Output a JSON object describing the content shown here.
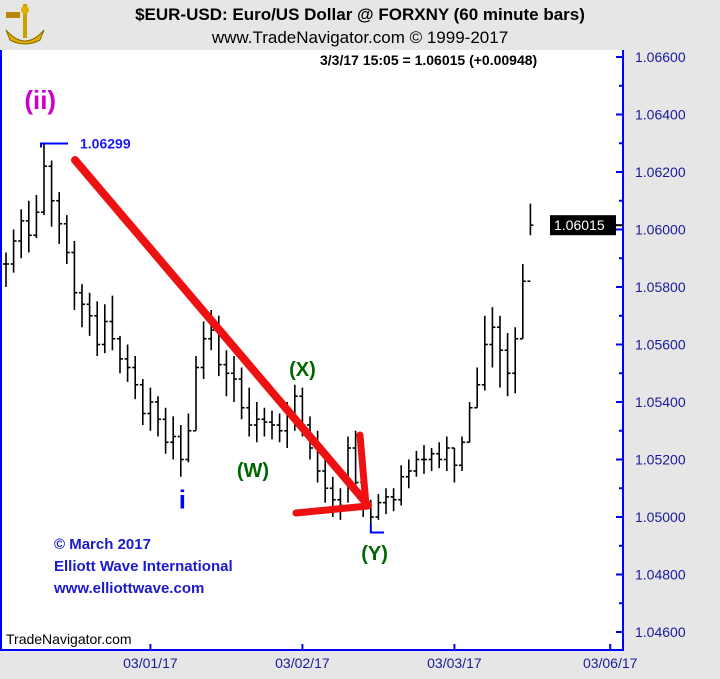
{
  "header": {
    "title": "$EUR-USD:  Euro/US Dollar @ FORXNY  (60 minute bars)",
    "subtitle": "www.TradeNavigator.com © 1999-2017",
    "readout": "3/3/17 15:05 = 1.06015 (+0.00948)",
    "logo": "sextant-logo"
  },
  "footer": {
    "brand": "TradeNavigator.com",
    "copyright": [
      "© March 2017",
      "Elliott Wave International",
      "www.elliottwave.com"
    ]
  },
  "colors": {
    "bars": "#000000",
    "axis": "#0000ff",
    "arrow": "#ee1111",
    "wave_ii": "#cc00cc",
    "wave_i": "#0000ff",
    "wave_wxy": "#006600"
  },
  "chart_data": {
    "type": "ohlc",
    "title": "$EUR-USD:  Euro/US Dollar @ FORXNY  (60 minute bars)",
    "ylim": [
      1.0452,
      1.0673
    ],
    "yticks": [
      "1.06600",
      "1.06400",
      "1.06200",
      "1.06000",
      "1.05800",
      "1.05600",
      "1.05400",
      "1.05200",
      "1.05000",
      "1.04800",
      "1.04600"
    ],
    "xticks": [
      {
        "bar": 19,
        "label": "03/01/17"
      },
      {
        "bar": 39,
        "label": "03/02/17"
      },
      {
        "bar": 59,
        "label": "03/03/17"
      },
      {
        "bar": 79.5,
        "label": "03/06/17"
      }
    ],
    "last_price": "1.06015",
    "high_label": "1.06299",
    "bars_hlc": [
      [
        1.0592,
        1.058,
        1.0588
      ],
      [
        1.06,
        1.0585,
        1.0596
      ],
      [
        1.0607,
        1.059,
        1.0603
      ],
      [
        1.061,
        1.0592,
        1.0598
      ],
      [
        1.0612,
        1.0597,
        1.0606
      ],
      [
        1.06299,
        1.0605,
        1.0622
      ],
      [
        1.0624,
        1.0601,
        1.061
      ],
      [
        1.0613,
        1.0595,
        1.0602
      ],
      [
        1.0605,
        1.0588,
        1.0592
      ],
      [
        1.0596,
        1.0572,
        1.0578
      ],
      [
        1.0581,
        1.0566,
        1.0574
      ],
      [
        1.0578,
        1.0563,
        1.057
      ],
      [
        1.0575,
        1.0556,
        1.056
      ],
      [
        1.0574,
        1.0557,
        1.0568
      ],
      [
        1.0577,
        1.0558,
        1.0562
      ],
      [
        1.0563,
        1.055,
        1.0555
      ],
      [
        1.056,
        1.0547,
        1.0552
      ],
      [
        1.0556,
        1.0541,
        1.0546
      ],
      [
        1.0548,
        1.0532,
        1.0536
      ],
      [
        1.0545,
        1.053,
        1.054
      ],
      [
        1.0542,
        1.0528,
        1.0534
      ],
      [
        1.0538,
        1.0522,
        1.0526
      ],
      [
        1.0535,
        1.052,
        1.0528
      ],
      [
        1.0532,
        1.0514,
        1.052
      ],
      [
        1.0536,
        1.0519,
        1.053
      ],
      [
        1.0556,
        1.053,
        1.0552
      ],
      [
        1.0568,
        1.0548,
        1.0562
      ],
      [
        1.0572,
        1.0558,
        1.0565
      ],
      [
        1.057,
        1.0549,
        1.0553
      ],
      [
        1.0558,
        1.0542,
        1.055
      ],
      [
        1.0556,
        1.054,
        1.0548
      ],
      [
        1.0552,
        1.0534,
        1.0538
      ],
      [
        1.0545,
        1.0528,
        1.0532
      ],
      [
        1.054,
        1.0526,
        1.0534
      ],
      [
        1.0538,
        1.0528,
        1.0533
      ],
      [
        1.0537,
        1.0527,
        1.0532
      ],
      [
        1.0536,
        1.0526,
        1.053
      ],
      [
        1.054,
        1.0524,
        1.0536
      ],
      [
        1.0546,
        1.053,
        1.0542
      ],
      [
        1.0545,
        1.0528,
        1.0532
      ],
      [
        1.0535,
        1.052,
        1.0524
      ],
      [
        1.053,
        1.0512,
        1.0516
      ],
      [
        1.052,
        1.0505,
        1.051
      ],
      [
        1.0514,
        1.05,
        1.0506
      ],
      [
        1.051,
        1.0499,
        1.0504
      ],
      [
        1.0528,
        1.0505,
        1.0524
      ],
      [
        1.053,
        1.0508,
        1.0512
      ],
      [
        1.0516,
        1.05,
        1.0504
      ],
      [
        1.0506,
        1.04953,
        1.05
      ],
      [
        1.0508,
        1.0499,
        1.0505
      ],
      [
        1.051,
        1.0501,
        1.0507
      ],
      [
        1.051,
        1.0502,
        1.0506
      ],
      [
        1.0518,
        1.0504,
        1.0514
      ],
      [
        1.052,
        1.051,
        1.0516
      ],
      [
        1.0523,
        1.0514,
        1.052
      ],
      [
        1.0525,
        1.0515,
        1.052
      ],
      [
        1.0524,
        1.0516,
        1.0522
      ],
      [
        1.0526,
        1.0517,
        1.052
      ],
      [
        1.0528,
        1.0516,
        1.0524
      ],
      [
        1.0524,
        1.0512,
        1.0518
      ],
      [
        1.0528,
        1.0516,
        1.0526
      ],
      [
        1.054,
        1.0526,
        1.0538
      ],
      [
        1.0552,
        1.0538,
        1.0546
      ],
      [
        1.057,
        1.0544,
        1.056
      ],
      [
        1.0573,
        1.0552,
        1.0566
      ],
      [
        1.057,
        1.0545,
        1.0558
      ],
      [
        1.0564,
        1.0542,
        1.055
      ],
      [
        1.0566,
        1.0543,
        1.0562
      ],
      [
        1.0588,
        1.0562,
        1.0582
      ],
      [
        1.0609,
        1.0598,
        1.06015
      ]
    ],
    "wave_labels": [
      {
        "text": "(ii)",
        "bar": 4.5,
        "price": 1.0642,
        "color": "#cc00cc"
      },
      {
        "text": "i",
        "bar": 23.2,
        "price": 1.0503,
        "color": "#0000ff"
      },
      {
        "text": "(W)",
        "bar": 32.5,
        "price": 1.0514,
        "color": "#006600"
      },
      {
        "text": "(X)",
        "bar": 39,
        "price": 1.0549,
        "color": "#006600"
      },
      {
        "text": "(Y)",
        "bar": 48.5,
        "price": 1.0485,
        "color": "#006600"
      }
    ]
  }
}
